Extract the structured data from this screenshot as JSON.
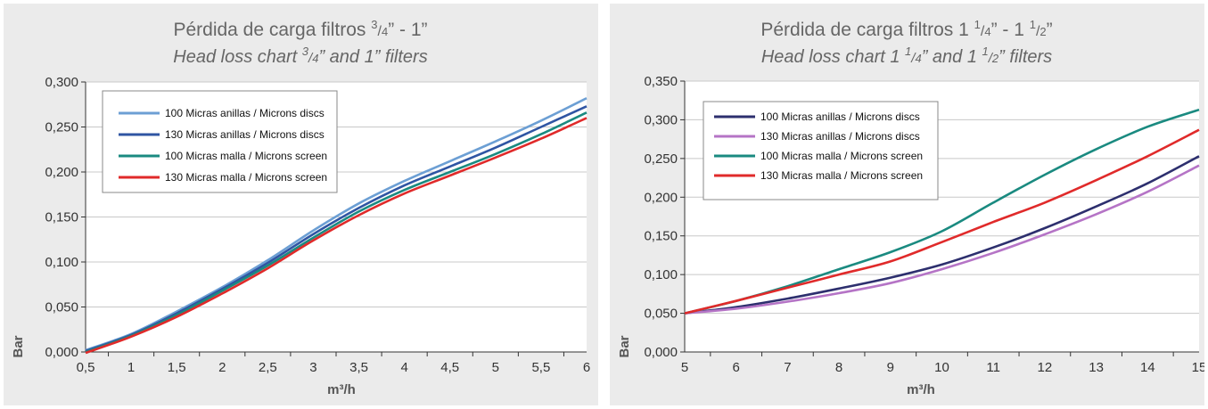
{
  "chart_data": [
    {
      "type": "line",
      "title_parts": {
        "pre": "Pérdida de carga filtros ",
        "frac_num": "3",
        "frac_den": "4",
        "post": "” - 1”"
      },
      "subtitle_parts": {
        "pre": "Head loss chart ",
        "frac_num": "3",
        "frac_den": "4",
        "post": "” and 1” filters"
      },
      "xlabel": "m³/h",
      "ylabel": "Bar",
      "xlim": [
        0.5,
        6
      ],
      "ylim": [
        0,
        0.3
      ],
      "x_ticks": [
        "0,5",
        "1",
        "1,5",
        "2",
        "2,5",
        "3",
        "3,5",
        "4",
        "4,5",
        "5",
        "5,5",
        "6"
      ],
      "y_ticks": [
        "0,000",
        "0,050",
        "0,100",
        "0,150",
        "0,200",
        "0,250",
        "0,300"
      ],
      "grid": true,
      "legend_position": "top-left",
      "series": [
        {
          "name": "100 Micras anillas / Microns discs",
          "color": "#6c9fd4",
          "x": [
            0.5,
            1,
            1.5,
            2,
            2.5,
            3,
            3.5,
            4,
            4.5,
            5,
            5.5,
            6
          ],
          "y": [
            0.002,
            0.02,
            0.045,
            0.072,
            0.102,
            0.135,
            0.165,
            0.19,
            0.212,
            0.234,
            0.257,
            0.282
          ]
        },
        {
          "name": "130 Micras anillas / Microns discs",
          "color": "#2f55a3",
          "x": [
            0.5,
            1,
            1.5,
            2,
            2.5,
            3,
            3.5,
            4,
            4.5,
            5,
            5.5,
            6
          ],
          "y": [
            0.001,
            0.019,
            0.043,
            0.07,
            0.099,
            0.131,
            0.16,
            0.185,
            0.206,
            0.227,
            0.25,
            0.273
          ]
        },
        {
          "name": "100 Micras malla / Microns screen",
          "color": "#1a8a80",
          "x": [
            0.5,
            1,
            1.5,
            2,
            2.5,
            3,
            3.5,
            4,
            4.5,
            5,
            5.5,
            6
          ],
          "y": [
            0,
            0.018,
            0.041,
            0.068,
            0.096,
            0.127,
            0.156,
            0.18,
            0.2,
            0.22,
            0.242,
            0.266
          ]
        },
        {
          "name": "130 Micras malla / Microns screen",
          "color": "#e02a2a",
          "x": [
            0.5,
            1,
            1.5,
            2,
            2.5,
            3,
            3.5,
            4,
            4.5,
            5,
            5.5,
            6
          ],
          "y": [
            -0.001,
            0.017,
            0.039,
            0.065,
            0.093,
            0.124,
            0.152,
            0.176,
            0.196,
            0.216,
            0.237,
            0.26
          ]
        }
      ]
    },
    {
      "type": "line",
      "title_parts": {
        "pre": "Pérdida de carga filtros 1 ",
        "frac_num": "1",
        "frac_den": "4",
        "mid": "” - 1 ",
        "frac2_num": "1",
        "frac2_den": "2",
        "post": "”"
      },
      "subtitle_parts": {
        "pre": "Head loss chart 1 ",
        "frac_num": "1",
        "frac_den": "4",
        "mid": "” and 1 ",
        "frac2_num": "1",
        "frac2_den": "2",
        "post": "” filters"
      },
      "xlabel": "m³/h",
      "ylabel": "Bar",
      "xlim": [
        5,
        15
      ],
      "ylim": [
        0,
        0.35
      ],
      "x_ticks": [
        "5",
        "6",
        "7",
        "8",
        "9",
        "10",
        "11",
        "12",
        "13",
        "14",
        "15"
      ],
      "y_ticks": [
        "0,000",
        "0,050",
        "0,100",
        "0,150",
        "0,200",
        "0,250",
        "0,300",
        "0,350"
      ],
      "grid": true,
      "legend_position": "top-left",
      "series": [
        {
          "name": "100 Micras anillas / Microns discs",
          "color": "#2d2f6e",
          "x": [
            5,
            6,
            7,
            8,
            9,
            10,
            11,
            12,
            13,
            14,
            15
          ],
          "y": [
            0.05,
            0.058,
            0.069,
            0.082,
            0.096,
            0.113,
            0.135,
            0.16,
            0.188,
            0.218,
            0.253
          ]
        },
        {
          "name": "130 Micras anillas / Microns discs",
          "color": "#b574c6",
          "x": [
            5,
            6,
            7,
            8,
            9,
            10,
            11,
            12,
            13,
            14,
            15
          ],
          "y": [
            0.05,
            0.056,
            0.065,
            0.076,
            0.089,
            0.107,
            0.128,
            0.152,
            0.178,
            0.207,
            0.241
          ]
        },
        {
          "name": "100 Micras malla / Microns screen",
          "color": "#1a8a80",
          "x": [
            5,
            6,
            7,
            8,
            9,
            10,
            11,
            12,
            13,
            14,
            15
          ],
          "y": [
            0.05,
            0.066,
            0.085,
            0.107,
            0.129,
            0.156,
            0.193,
            0.229,
            0.262,
            0.291,
            0.313
          ]
        },
        {
          "name": "130 Micras malla / Microns screen",
          "color": "#e02a2a",
          "x": [
            5,
            6,
            7,
            8,
            9,
            10,
            11,
            12,
            13,
            14,
            15
          ],
          "y": [
            0.05,
            0.066,
            0.083,
            0.1,
            0.117,
            0.142,
            0.168,
            0.193,
            0.222,
            0.253,
            0.287
          ]
        }
      ]
    }
  ]
}
